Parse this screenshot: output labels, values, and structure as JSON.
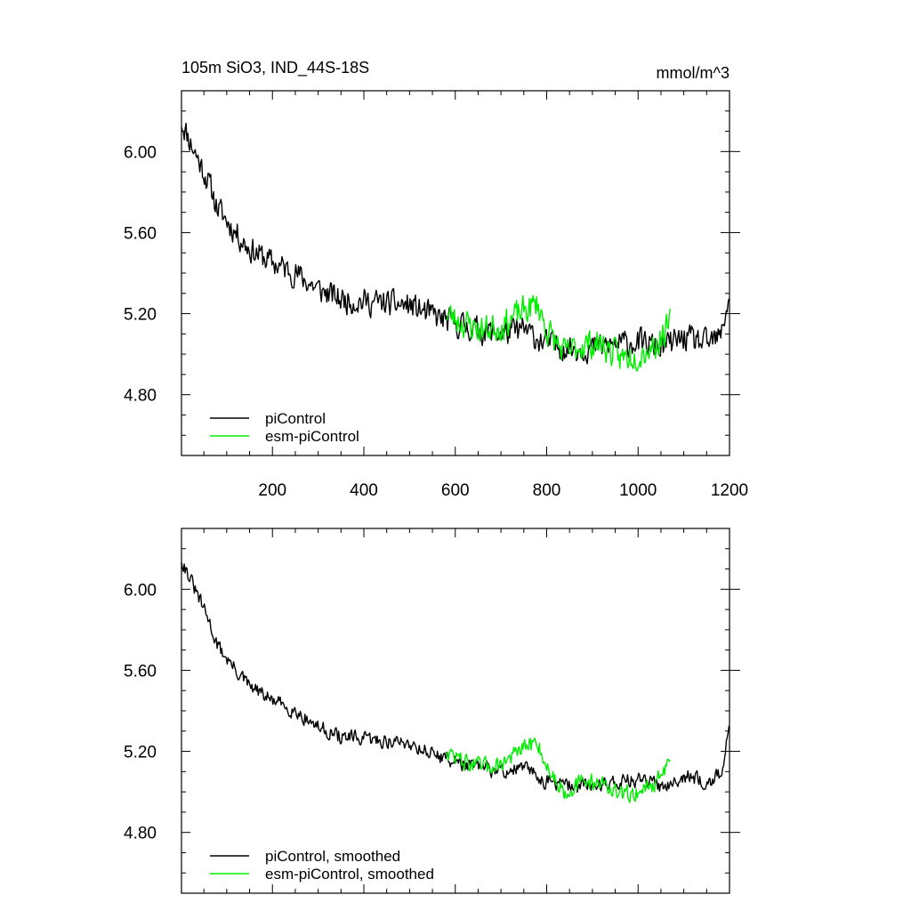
{
  "chart_data": [
    {
      "type": "line",
      "title_left": "105m SiO3, IND_44S-18S",
      "title_right": "mmol/m^3",
      "xlim": [
        1,
        1200
      ],
      "ylim": [
        4.5,
        6.3
      ],
      "x_ticks": [
        200,
        400,
        600,
        800,
        1000,
        1200
      ],
      "y_ticks": [
        4.8,
        5.2,
        5.6,
        6.0
      ],
      "y_tick_labels": [
        "4.80",
        "5.20",
        "5.60",
        "6.00"
      ],
      "x_tick_labels": [
        "200",
        "400",
        "600",
        "800",
        "1000",
        "1200"
      ],
      "legend_position": "bottom-left",
      "series": [
        {
          "name": "piControl",
          "color": "#000000",
          "x_start": 1,
          "x_end": 1200,
          "anchors": [
            [
              1,
              6.15
            ],
            [
              20,
              6.05
            ],
            [
              40,
              5.95
            ],
            [
              60,
              5.85
            ],
            [
              80,
              5.72
            ],
            [
              100,
              5.66
            ],
            [
              120,
              5.6
            ],
            [
              150,
              5.52
            ],
            [
              200,
              5.45
            ],
            [
              250,
              5.4
            ],
            [
              300,
              5.32
            ],
            [
              350,
              5.27
            ],
            [
              400,
              5.26
            ],
            [
              450,
              5.25
            ],
            [
              500,
              5.24
            ],
            [
              550,
              5.19
            ],
            [
              600,
              5.15
            ],
            [
              650,
              5.12
            ],
            [
              700,
              5.1
            ],
            [
              750,
              5.12
            ],
            [
              800,
              5.05
            ],
            [
              850,
              5.03
            ],
            [
              900,
              5.03
            ],
            [
              950,
              5.05
            ],
            [
              1000,
              5.06
            ],
            [
              1050,
              5.03
            ],
            [
              1100,
              5.08
            ],
            [
              1150,
              5.05
            ],
            [
              1180,
              5.08
            ],
            [
              1200,
              5.3
            ]
          ],
          "noise": 0.09,
          "seed": 11
        },
        {
          "name": "esm-piControl",
          "color": "#00ee00",
          "x_start": 580,
          "x_end": 1070,
          "anchors": [
            [
              580,
              5.2
            ],
            [
              620,
              5.15
            ],
            [
              660,
              5.12
            ],
            [
              700,
              5.14
            ],
            [
              740,
              5.2
            ],
            [
              780,
              5.25
            ],
            [
              800,
              5.12
            ],
            [
              840,
              5.0
            ],
            [
              880,
              5.05
            ],
            [
              920,
              5.05
            ],
            [
              960,
              4.98
            ],
            [
              1000,
              5.0
            ],
            [
              1040,
              5.05
            ],
            [
              1070,
              5.15
            ]
          ],
          "noise": 0.1,
          "seed": 23
        }
      ]
    },
    {
      "type": "line",
      "xlim": [
        1,
        1200
      ],
      "ylim": [
        4.5,
        6.3
      ],
      "x_ticks": [
        200,
        400,
        600,
        800,
        1000,
        1200
      ],
      "y_ticks": [
        4.8,
        5.2,
        5.6,
        6.0
      ],
      "y_tick_labels": [
        "4.80",
        "5.20",
        "5.60",
        "6.00"
      ],
      "legend_position": "bottom-left",
      "series": [
        {
          "name": "piControl, smoothed",
          "color": "#000000",
          "x_start": 1,
          "x_end": 1200,
          "anchors": [
            [
              1,
              6.15
            ],
            [
              20,
              6.05
            ],
            [
              40,
              5.95
            ],
            [
              60,
              5.85
            ],
            [
              80,
              5.72
            ],
            [
              100,
              5.66
            ],
            [
              120,
              5.6
            ],
            [
              150,
              5.52
            ],
            [
              200,
              5.45
            ],
            [
              250,
              5.4
            ],
            [
              300,
              5.32
            ],
            [
              350,
              5.27
            ],
            [
              400,
              5.26
            ],
            [
              450,
              5.25
            ],
            [
              500,
              5.24
            ],
            [
              550,
              5.19
            ],
            [
              600,
              5.15
            ],
            [
              650,
              5.12
            ],
            [
              700,
              5.1
            ],
            [
              750,
              5.12
            ],
            [
              800,
              5.05
            ],
            [
              850,
              5.03
            ],
            [
              900,
              5.03
            ],
            [
              950,
              5.05
            ],
            [
              1000,
              5.06
            ],
            [
              1050,
              5.03
            ],
            [
              1100,
              5.08
            ],
            [
              1150,
              5.05
            ],
            [
              1180,
              5.08
            ],
            [
              1200,
              5.3
            ]
          ],
          "noise": 0.05,
          "seed": 31
        },
        {
          "name": "esm-piControl, smoothed",
          "color": "#00ee00",
          "x_start": 580,
          "x_end": 1070,
          "anchors": [
            [
              580,
              5.2
            ],
            [
              620,
              5.15
            ],
            [
              660,
              5.12
            ],
            [
              700,
              5.14
            ],
            [
              740,
              5.2
            ],
            [
              780,
              5.25
            ],
            [
              800,
              5.12
            ],
            [
              840,
              5.0
            ],
            [
              880,
              5.05
            ],
            [
              920,
              5.05
            ],
            [
              960,
              4.98
            ],
            [
              1000,
              5.0
            ],
            [
              1040,
              5.05
            ],
            [
              1070,
              5.15
            ]
          ],
          "noise": 0.06,
          "seed": 47
        }
      ]
    }
  ]
}
